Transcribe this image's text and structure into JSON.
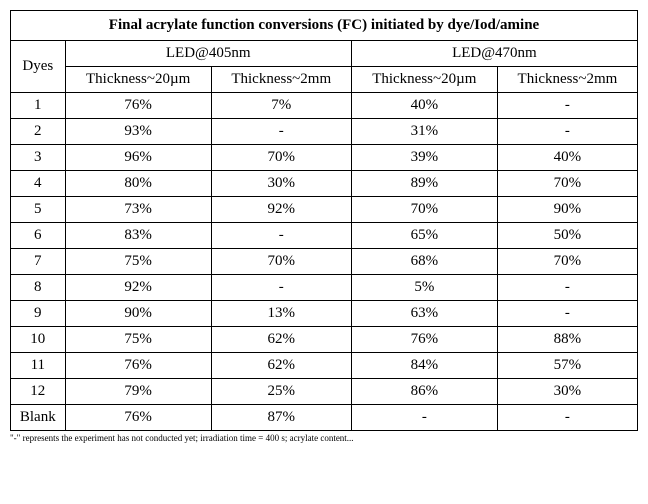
{
  "table": {
    "title": "Final acrylate function conversions (FC) initiated by dye/Iod/amine",
    "row_header": "Dyes",
    "led1": "LED@405nm",
    "led2": "LED@470nm",
    "thick1": "Thickness~20µm",
    "thick2": "Thickness~2mm",
    "thick3": "Thickness~20µm",
    "thick4": "Thickness~2mm",
    "rows": [
      {
        "dye": "1",
        "a": "76%",
        "b": "7%",
        "c": "40%",
        "d": "-"
      },
      {
        "dye": "2",
        "a": "93%",
        "b": "-",
        "c": "31%",
        "d": "-"
      },
      {
        "dye": "3",
        "a": "96%",
        "b": "70%",
        "c": "39%",
        "d": "40%"
      },
      {
        "dye": "4",
        "a": "80%",
        "b": "30%",
        "c": "89%",
        "d": "70%"
      },
      {
        "dye": "5",
        "a": "73%",
        "b": "92%",
        "c": "70%",
        "d": "90%"
      },
      {
        "dye": "6",
        "a": "83%",
        "b": "-",
        "c": "65%",
        "d": "50%"
      },
      {
        "dye": "7",
        "a": "75%",
        "b": "70%",
        "c": "68%",
        "d": "70%"
      },
      {
        "dye": "8",
        "a": "92%",
        "b": "-",
        "c": "5%",
        "d": "-"
      },
      {
        "dye": "9",
        "a": "90%",
        "b": "13%",
        "c": "63%",
        "d": "-"
      },
      {
        "dye": "10",
        "a": "75%",
        "b": "62%",
        "c": "76%",
        "d": "88%"
      },
      {
        "dye": "11",
        "a": "76%",
        "b": "62%",
        "c": "84%",
        "d": "57%"
      },
      {
        "dye": "12",
        "a": "79%",
        "b": "25%",
        "c": "86%",
        "d": "30%"
      },
      {
        "dye": "Blank",
        "a": "76%",
        "b": "87%",
        "c": "-",
        "d": "-"
      }
    ],
    "footnote": "\"-\" represents the experiment has not conducted yet; irradiation time = 400 s; acrylate content..."
  },
  "style": {
    "font_family": "Times New Roman",
    "title_fontsize": 15,
    "body_fontsize": 15,
    "footnote_fontsize": 9,
    "border_color": "#000000",
    "background_color": "#ffffff",
    "text_color": "#000000"
  }
}
